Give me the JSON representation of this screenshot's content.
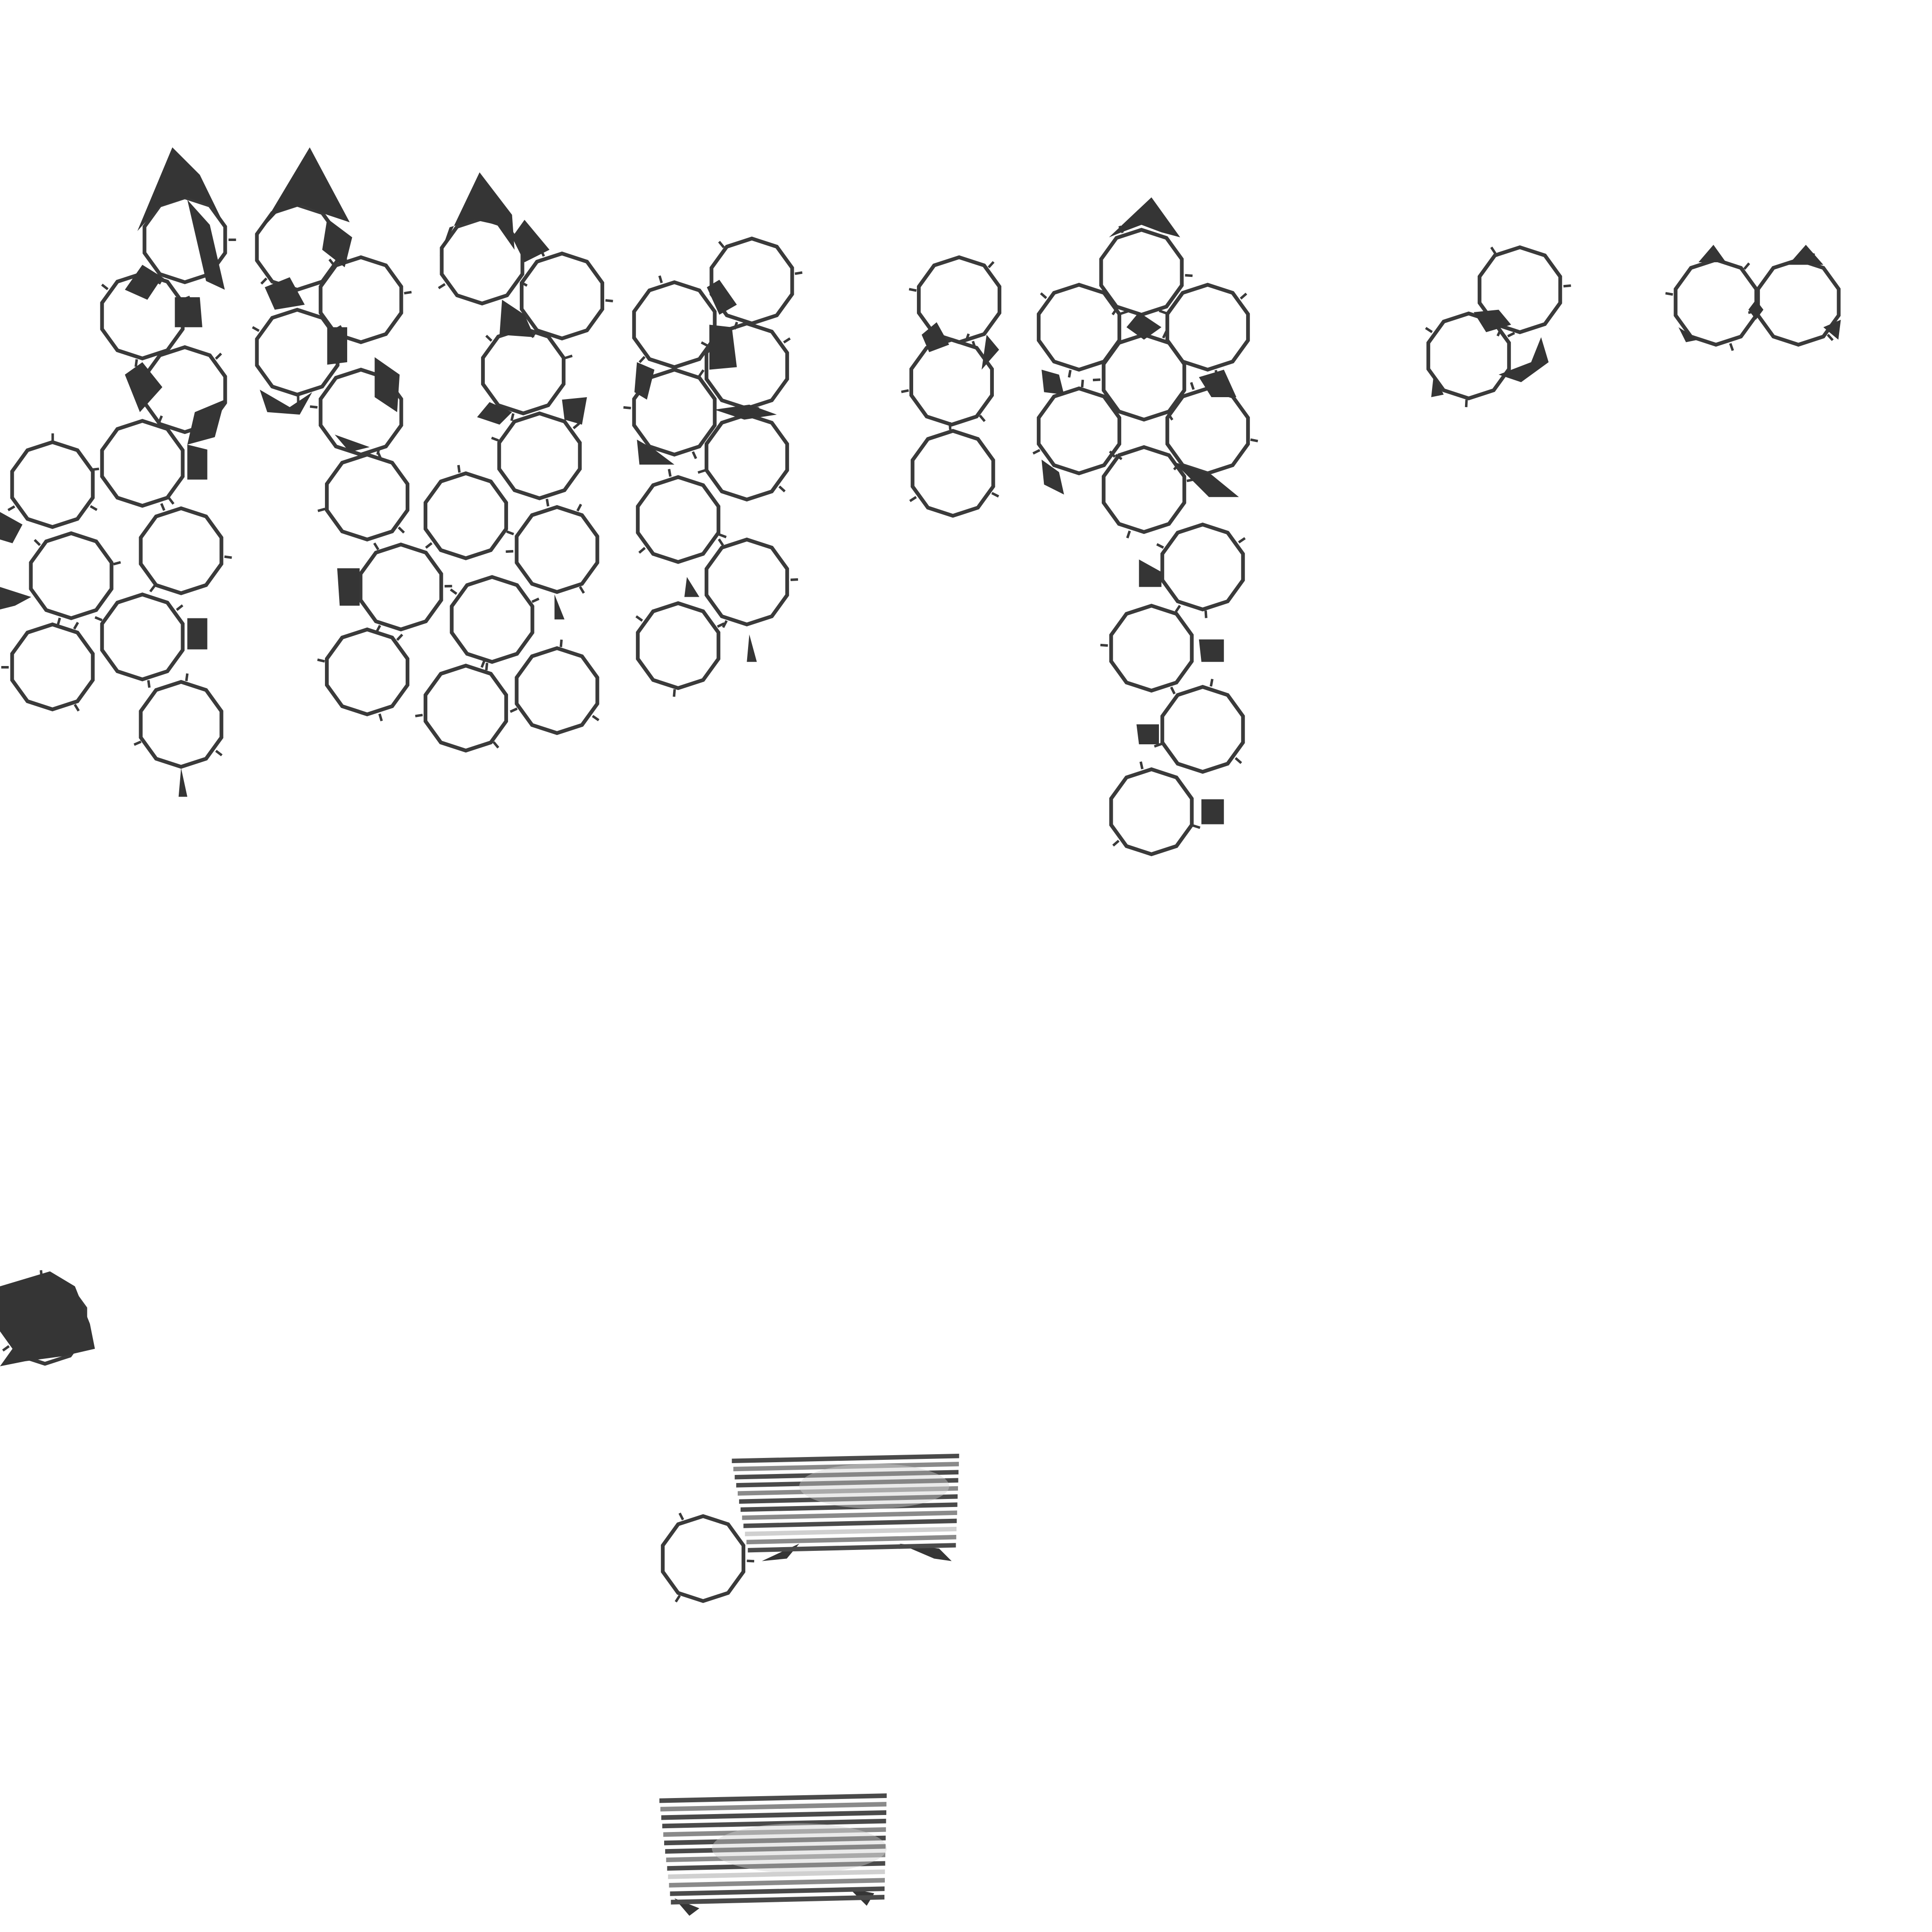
{
  "palette": {
    "background": "#ffffff",
    "ring_stroke": "#3a3a3a",
    "wedge_fill": "#353535",
    "stripe_dark": "#4a4a4a",
    "stripe_mid": "#8a8a8a",
    "stripe_light": "#d0d0d0"
  },
  "shapes": {
    "ring_sides": 10,
    "clusters": [
      "cluster-column-1",
      "cluster-column-2",
      "cluster-column-3",
      "cluster-column-4",
      "cluster-column-5",
      "cluster-column-6",
      "cluster-column-7",
      "cluster-pair-upper-right",
      "cluster-pair-far-right",
      "cluster-left-edge",
      "cluster-lower-striped",
      "cluster-bottom-striped"
    ]
  }
}
